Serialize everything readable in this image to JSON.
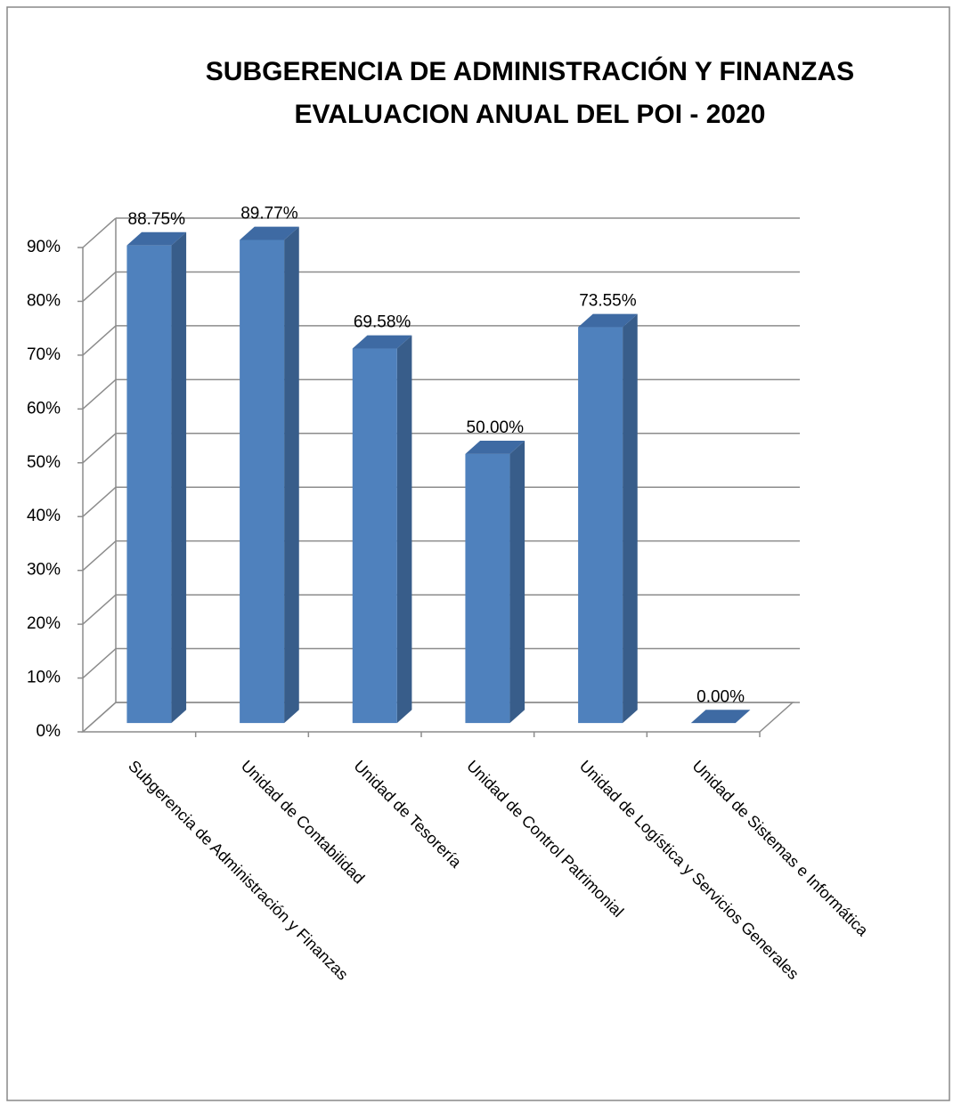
{
  "chart_data": {
    "type": "bar3d",
    "title": "SUBGERENCIA DE ADMINISTRACIÓN Y FINANZAS",
    "subtitle": "EVALUACION ANUAL DEL POI - 2020",
    "categories": [
      "Subgerencia de Administración y Finanzas",
      "Unidad de Contabilidad",
      "Unidad de Tesorería",
      "Unidad de Control Patrimonial",
      "Unidad de Logística y Servicios Generales",
      "Unidad de Sistemas e Informática"
    ],
    "values": [
      88.75,
      89.77,
      69.58,
      50.0,
      73.55,
      0.0
    ],
    "value_labels": [
      "88.75%",
      "89.77%",
      "69.58%",
      "50.00%",
      "73.55%",
      "0.00%"
    ],
    "color": "#4f81bd",
    "ylim": [
      0,
      90
    ],
    "yticks": [
      {
        "value": 0,
        "label": "0%"
      },
      {
        "value": 10,
        "label": "10%"
      },
      {
        "value": 20,
        "label": "20%"
      },
      {
        "value": 30,
        "label": "30%"
      },
      {
        "value": 40,
        "label": "40%"
      },
      {
        "value": 50,
        "label": "50%"
      },
      {
        "value": 60,
        "label": "60%"
      },
      {
        "value": 70,
        "label": "70%"
      },
      {
        "value": 80,
        "label": "80%"
      },
      {
        "value": 90,
        "label": "90%"
      }
    ],
    "grid": true
  }
}
